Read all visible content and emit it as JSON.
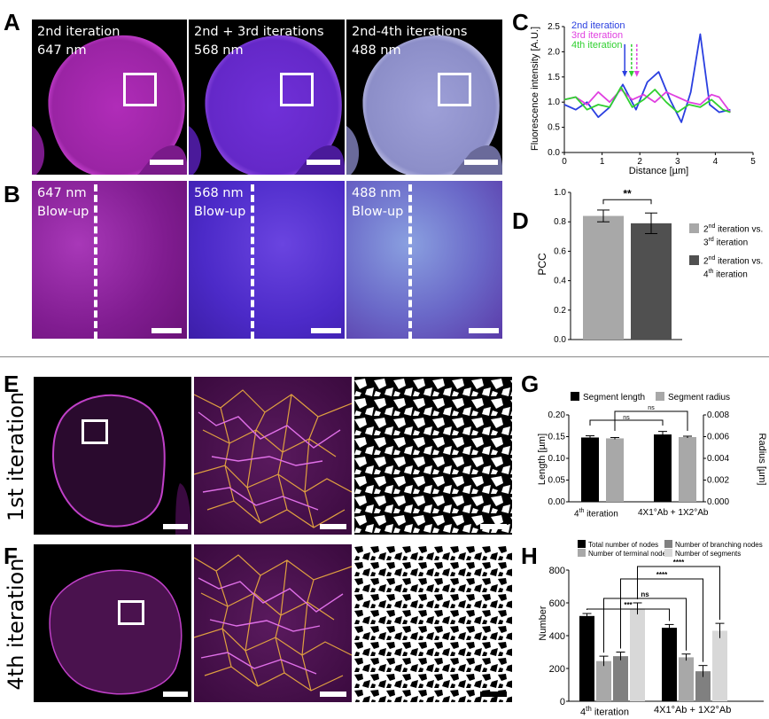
{
  "labels": {
    "A": "A",
    "B": "B",
    "C": "C",
    "D": "D",
    "E": "E",
    "F": "F",
    "G": "G",
    "H": "H"
  },
  "panel_a": [
    {
      "line1": "2nd iteration",
      "line2": "647 nm",
      "tint": "#cc33cc"
    },
    {
      "line1": "2nd + 3rd iterations",
      "line2": "568 nm",
      "tint": "#7a3ae0"
    },
    {
      "line1": "2nd-4th iterations",
      "line2": "488 nm",
      "tint": "#b8b8e8"
    }
  ],
  "panel_b": [
    {
      "line1": "647 nm",
      "line2": "Blow-up"
    },
    {
      "line1": "568 nm",
      "line2": "Blow-up"
    },
    {
      "line1": "488 nm",
      "line2": "Blow-up"
    }
  ],
  "row_e": {
    "side_label": "1st iteration"
  },
  "row_f": {
    "side_label": "4th iteration"
  },
  "colors": {
    "blue": "#2a3fe0",
    "magenta": "#e040e0",
    "green": "#30d030",
    "light_bar": "#a8a8a8",
    "dark_bar": "#505050"
  },
  "chart_data": [
    {
      "id": "C",
      "type": "line",
      "xlabel": "Distance [µm]",
      "ylabel": "Fluorescence intensity [A.U.]",
      "xlim": [
        0,
        5
      ],
      "ylim": [
        0,
        2.5
      ],
      "xticks": [
        0,
        1,
        2,
        3,
        4,
        5
      ],
      "yticks": [
        "0.0",
        "0.5",
        "1.0",
        "1.5",
        "2.0",
        "2.5"
      ],
      "series": [
        {
          "name": "2nd iteration",
          "color": "#2a3fe0",
          "x": [
            0,
            0.3,
            0.6,
            0.9,
            1.2,
            1.55,
            1.9,
            2.2,
            2.5,
            2.8,
            3.1,
            3.35,
            3.6,
            3.85,
            4.1,
            4.4
          ],
          "y": [
            0.95,
            0.85,
            1.0,
            0.7,
            0.9,
            1.35,
            0.85,
            1.4,
            1.6,
            1.05,
            0.6,
            1.2,
            2.35,
            0.95,
            0.8,
            0.85
          ]
        },
        {
          "name": "3rd iteration",
          "color": "#e040e0",
          "x": [
            0,
            0.3,
            0.6,
            0.9,
            1.2,
            1.5,
            1.8,
            2.1,
            2.4,
            2.7,
            3.0,
            3.3,
            3.6,
            3.9,
            4.1,
            4.4
          ],
          "y": [
            1.05,
            1.1,
            0.95,
            1.2,
            1.0,
            1.25,
            1.05,
            1.15,
            1.0,
            1.2,
            1.1,
            1.0,
            0.95,
            1.15,
            1.1,
            0.8
          ]
        },
        {
          "name": "4th iteration",
          "color": "#30d030",
          "x": [
            0,
            0.3,
            0.6,
            0.9,
            1.2,
            1.5,
            1.8,
            2.1,
            2.4,
            2.7,
            3.0,
            3.3,
            3.6,
            3.9,
            4.2,
            4.4
          ],
          "y": [
            1.05,
            1.1,
            0.85,
            0.95,
            0.9,
            1.3,
            0.9,
            1.05,
            1.25,
            1.0,
            0.8,
            0.95,
            0.9,
            1.05,
            0.85,
            0.8
          ]
        }
      ]
    },
    {
      "id": "D",
      "type": "bar",
      "ylabel": "PCC",
      "ylim": [
        0,
        1.0
      ],
      "yticks": [
        "0.0",
        "0.2",
        "0.4",
        "0.6",
        "0.8",
        "1.0"
      ],
      "significance": "**",
      "bars": [
        {
          "value": 0.84,
          "err": 0.04,
          "color": "#a8a8a8"
        },
        {
          "value": 0.79,
          "err": 0.07,
          "color": "#505050"
        }
      ],
      "legend": [
        {
          "pre": "2",
          "sup": "nd",
          "post": " iteration vs.",
          "line2": "3",
          "sup2": "rd",
          "post2": " iteration",
          "color": "#a8a8a8"
        },
        {
          "pre": "2",
          "sup": "nd",
          "post": " iteration vs.",
          "line2": "4",
          "sup2": "th",
          "post2": " iteration",
          "color": "#505050"
        }
      ]
    },
    {
      "id": "G",
      "type": "bar",
      "ylabel": "Length [µm]",
      "y2label": "Radius [µm]",
      "ylim": [
        0,
        0.2
      ],
      "y2lim": [
        0,
        0.008
      ],
      "yticks": [
        "0.00",
        "0.05",
        "0.10",
        "0.15",
        "0.20"
      ],
      "y2ticks": [
        "0.000",
        "0.002",
        "0.004",
        "0.006",
        "0.008"
      ],
      "legend": [
        {
          "name": "Segment length",
          "color": "#000000"
        },
        {
          "name": "Segment radius",
          "color": "#a8a8a8"
        }
      ],
      "groups": [
        {
          "label_pre": "4",
          "label_sup": "th",
          "label_post": " iteration",
          "bars": [
            {
              "value": 0.148,
              "err": 0.004,
              "color": "#000000"
            },
            {
              "value": 0.146,
              "err": 0.002,
              "color": "#a8a8a8"
            }
          ]
        },
        {
          "label_pre": "4X1°Ab + 1X2°Ab",
          "label_sup": "",
          "label_post": "",
          "bars": [
            {
              "value": 0.155,
              "err": 0.007,
              "color": "#000000"
            },
            {
              "value": 0.149,
              "err": 0.002,
              "color": "#a8a8a8"
            }
          ]
        }
      ],
      "significance": [
        "ns",
        "ns"
      ]
    },
    {
      "id": "H",
      "type": "bar",
      "ylabel": "Number",
      "ylim": [
        0,
        800
      ],
      "yticks": [
        "0",
        "200",
        "400",
        "600",
        "800"
      ],
      "legend": [
        {
          "name": "Total number of nodes",
          "color": "#000000"
        },
        {
          "name": "Number of branching nodes",
          "color": "#808080"
        },
        {
          "name": "Number of terminal nodes",
          "color": "#a8a8a8"
        },
        {
          "name": "Number of segments",
          "color": "#d8d8d8"
        }
      ],
      "groups": [
        {
          "label_pre": "4",
          "label_sup": "th",
          "label_post": " iteration",
          "bars": [
            {
              "value": 520,
              "err": 15,
              "color": "#000000"
            },
            {
              "value": 245,
              "err": 30,
              "color": "#a8a8a8"
            },
            {
              "value": 275,
              "err": 25,
              "color": "#808080"
            },
            {
              "value": 565,
              "err": 35,
              "color": "#d8d8d8"
            }
          ]
        },
        {
          "label_pre": "4X1°Ab + 1X2°Ab",
          "label_sup": "",
          "label_post": "",
          "bars": [
            {
              "value": 448,
              "err": 20,
              "color": "#000000"
            },
            {
              "value": 268,
              "err": 20,
              "color": "#a8a8a8"
            },
            {
              "value": 183,
              "err": 35,
              "color": "#808080"
            },
            {
              "value": 430,
              "err": 45,
              "color": "#d8d8d8"
            }
          ]
        }
      ],
      "significance": [
        "***",
        "ns",
        "****",
        "****"
      ]
    }
  ]
}
